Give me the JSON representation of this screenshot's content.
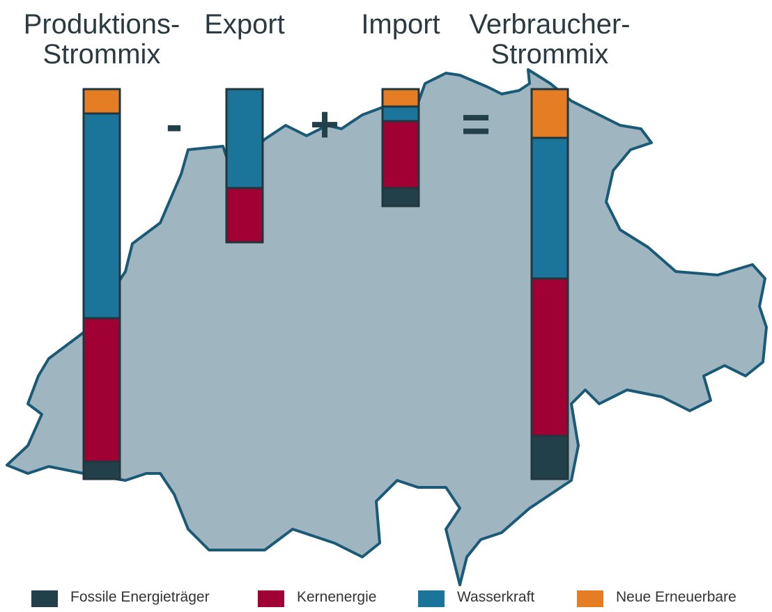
{
  "chart_data": {
    "type": "stacked_bar",
    "categories": [
      "Produktions-\nStrommix",
      "Export",
      "Import",
      "Verbraucher-\nStrommix"
    ],
    "operators": [
      "-",
      "+",
      "="
    ],
    "series": [
      {
        "name": "Fossile Energieträger",
        "color": "#22404a",
        "values": [
          25,
          0,
          26,
          62
        ]
      },
      {
        "name": "Kernenergie",
        "color": "#a00034",
        "values": [
          206,
          78,
          96,
          226
        ]
      },
      {
        "name": "Wasserkraft",
        "color": "#1b7499",
        "values": [
          294,
          142,
          21,
          202
        ]
      },
      {
        "name": "Neue Erneuerbare",
        "color": "#e57d25",
        "values": [
          35,
          0,
          25,
          70
        ]
      }
    ]
  }
}
